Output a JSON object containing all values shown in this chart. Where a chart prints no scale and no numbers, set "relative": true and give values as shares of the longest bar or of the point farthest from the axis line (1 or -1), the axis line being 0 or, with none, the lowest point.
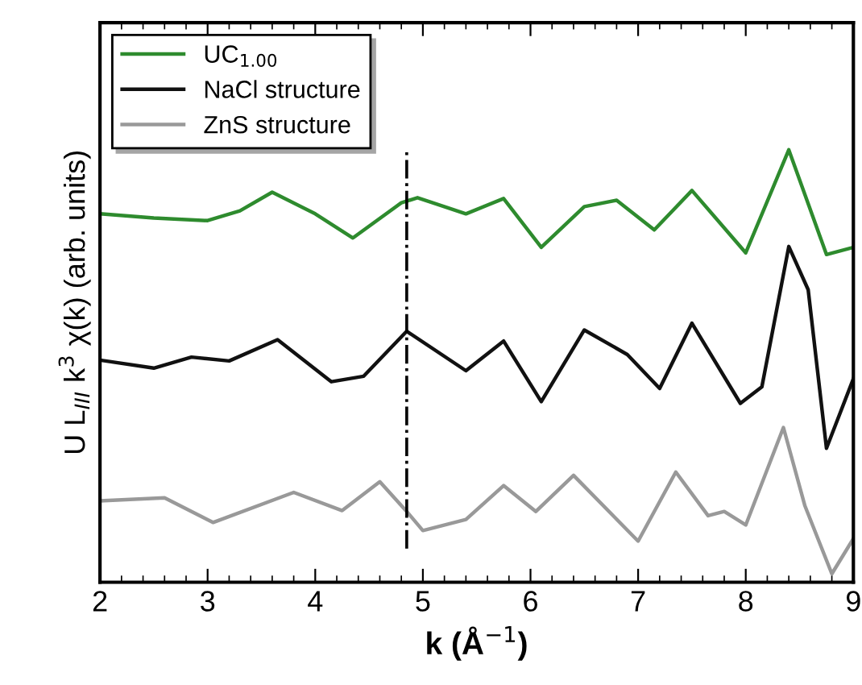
{
  "chart_data": {
    "type": "line",
    "relative": true,
    "xlabel": "k (Å$^{−1}$)",
    "ylabel": "U L$_{III}$ k$^{3}$ χ(k) (arb. units)",
    "xlim": [
      2,
      9
    ],
    "xticks": [
      2,
      3,
      4,
      5,
      6,
      7,
      8,
      9
    ],
    "grid": false,
    "legend": "top left",
    "marker": "none",
    "line_style": "solid",
    "series": [
      {
        "name": "UC$_{1.00}$",
        "color": "#2e8b2e",
        "x": [
          2,
          2.5,
          3,
          3.3,
          3.6,
          4,
          4.35,
          4.8,
          4.95,
          5.4,
          5.75,
          6.1,
          6.5,
          6.8,
          7.15,
          7.5,
          8.0,
          8.4,
          8.75,
          9
        ],
        "values": [
          0.849,
          0.839,
          0.833,
          0.856,
          0.9,
          0.849,
          0.792,
          0.875,
          0.887,
          0.849,
          0.885,
          0.77,
          0.866,
          0.881,
          0.811,
          0.904,
          0.757,
          1.0,
          0.753,
          0.77
        ]
      },
      {
        "name": "NaCl structure",
        "color": "#111111",
        "x": [
          2,
          2.5,
          2.85,
          3.2,
          3.65,
          4.15,
          4.45,
          4.85,
          5.4,
          5.75,
          6.1,
          6.5,
          6.9,
          7.2,
          7.5,
          7.95,
          8.15,
          8.4,
          8.58,
          8.75,
          9
        ],
        "values": [
          0.504,
          0.485,
          0.511,
          0.502,
          0.552,
          0.453,
          0.466,
          0.572,
          0.479,
          0.549,
          0.406,
          0.575,
          0.517,
          0.437,
          0.591,
          0.402,
          0.441,
          0.772,
          0.67,
          0.296,
          0.46
        ]
      },
      {
        "name": "ZnS structure",
        "color": "#999999",
        "x": [
          2,
          2.6,
          3.05,
          3.8,
          4.25,
          4.6,
          4.85,
          5.0,
          5.4,
          5.75,
          6.05,
          6.4,
          7.0,
          7.35,
          7.65,
          7.8,
          8.0,
          8.35,
          8.55,
          8.8,
          9
        ],
        "values": [
          0.172,
          0.179,
          0.121,
          0.192,
          0.149,
          0.217,
          0.147,
          0.102,
          0.128,
          0.208,
          0.147,
          0.232,
          0.077,
          0.24,
          0.137,
          0.147,
          0.115,
          0.345,
          0.16,
          0.0,
          0.083
        ]
      }
    ],
    "ref_lines": [
      {
        "axis": "x",
        "value": 4.85,
        "color": "#000000",
        "line_style": "dashdot"
      }
    ]
  }
}
